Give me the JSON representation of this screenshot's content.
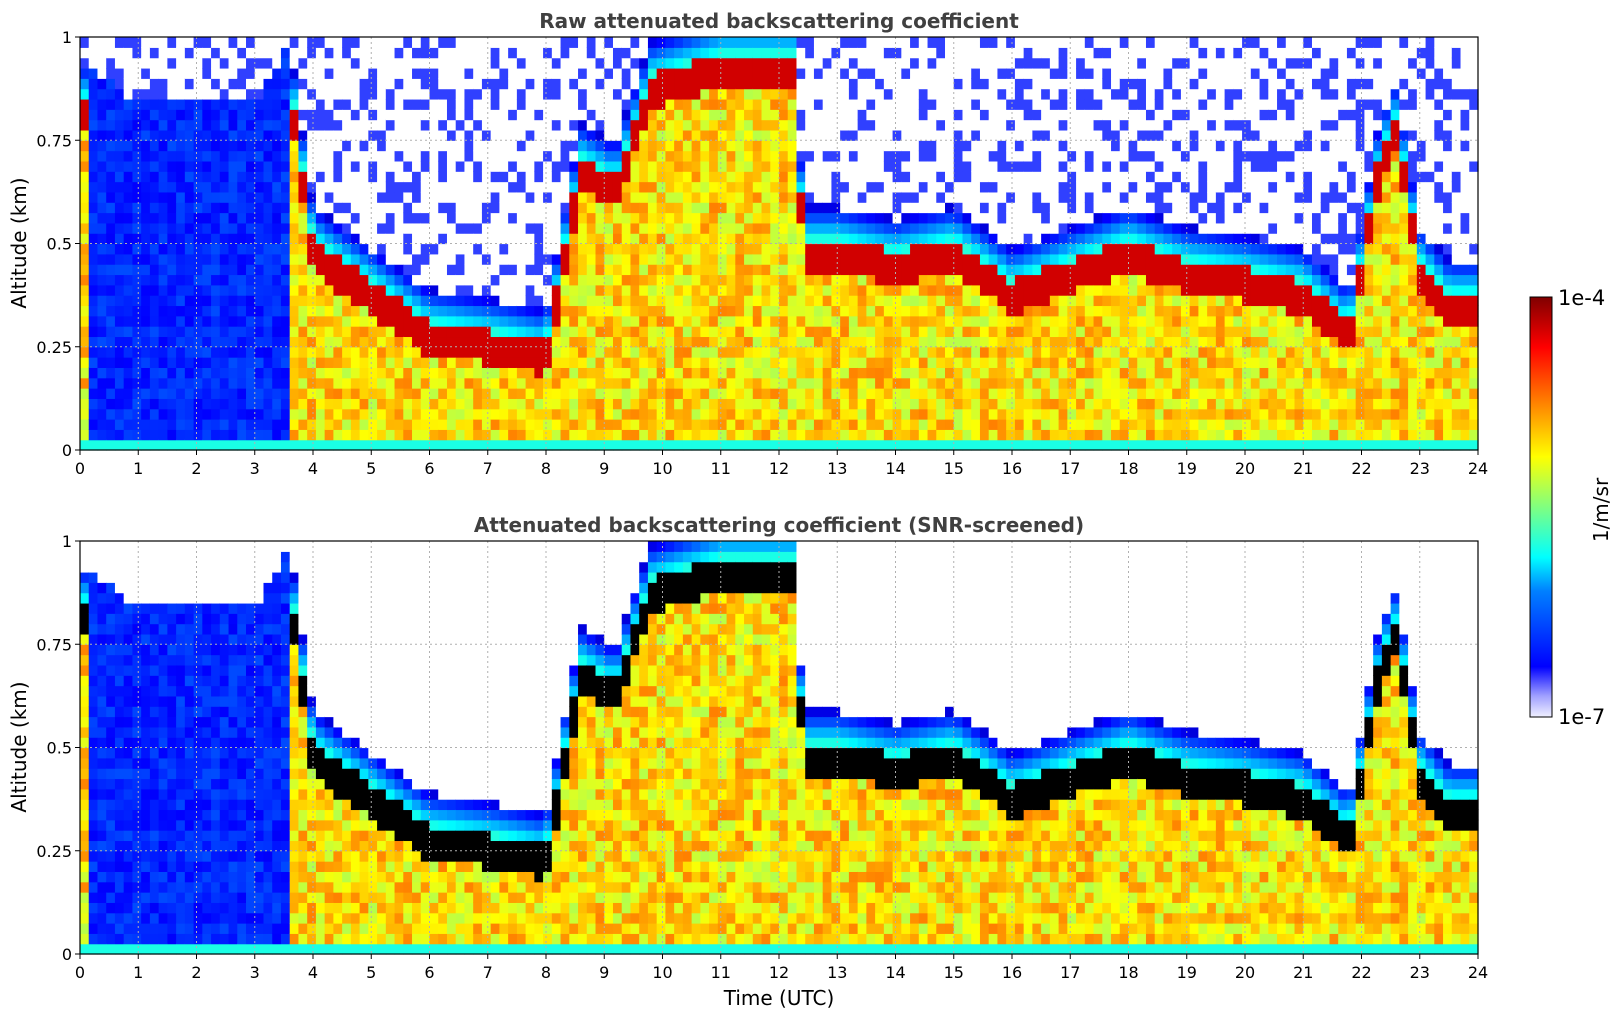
{
  "chart_data": [
    {
      "type": "heatmap",
      "title": "Raw attenuated backscattering coefficient",
      "xlabel": "",
      "ylabel": "Altitude (km)",
      "xlim": [
        0,
        24
      ],
      "ylim": [
        0,
        1
      ],
      "xticks": [
        "0",
        "1",
        "2",
        "3",
        "4",
        "5",
        "6",
        "7",
        "8",
        "9",
        "10",
        "11",
        "12",
        "13",
        "14",
        "15",
        "16",
        "17",
        "18",
        "19",
        "20",
        "21",
        "22",
        "23",
        "24"
      ],
      "yticks": [
        "0",
        "0.25",
        "0.5",
        "0.75",
        "1"
      ],
      "ytick_values": [
        0,
        0.25,
        0.5,
        0.75,
        1
      ],
      "grid": true,
      "screened": false,
      "layer_top_km": [
        [
          0,
          0.9
        ],
        [
          0.5,
          0.85
        ],
        [
          1,
          0.8
        ],
        [
          2,
          0.8
        ],
        [
          3,
          0.8
        ],
        [
          3.6,
          0.95
        ],
        [
          4,
          0.55
        ],
        [
          5,
          0.45
        ],
        [
          6,
          0.35
        ],
        [
          7,
          0.33
        ],
        [
          8,
          0.3
        ],
        [
          8.6,
          0.75
        ],
        [
          9.2,
          0.7
        ],
        [
          9.8,
          0.95
        ],
        [
          11,
          1.0
        ],
        [
          12.3,
          1.0
        ],
        [
          12.4,
          0.55
        ],
        [
          13,
          0.55
        ],
        [
          14,
          0.52
        ],
        [
          15,
          0.55
        ],
        [
          16,
          0.45
        ],
        [
          17,
          0.5
        ],
        [
          18,
          0.55
        ],
        [
          19,
          0.5
        ],
        [
          20,
          0.48
        ],
        [
          21,
          0.45
        ],
        [
          21.8,
          0.35
        ],
        [
          22.3,
          0.75
        ],
        [
          22.6,
          0.85
        ],
        [
          23,
          0.5
        ],
        [
          23.5,
          0.42
        ],
        [
          24,
          0.42
        ]
      ]
    },
    {
      "type": "heatmap",
      "title": "Attenuated backscattering coefficient (SNR-screened)",
      "xlabel": "Time (UTC)",
      "ylabel": "Altitude (km)",
      "xlim": [
        0,
        24
      ],
      "ylim": [
        0,
        1
      ],
      "xticks": [
        "0",
        "1",
        "2",
        "3",
        "4",
        "5",
        "6",
        "7",
        "8",
        "9",
        "10",
        "11",
        "12",
        "13",
        "14",
        "15",
        "16",
        "17",
        "18",
        "19",
        "20",
        "21",
        "22",
        "23",
        "24"
      ],
      "yticks": [
        "0",
        "0.25",
        "0.5",
        "0.75",
        "1"
      ],
      "ytick_values": [
        0,
        0.25,
        0.5,
        0.75,
        1
      ],
      "grid": true,
      "screened": true,
      "layer_top_km": [
        [
          0,
          0.9
        ],
        [
          0.5,
          0.85
        ],
        [
          1,
          0.8
        ],
        [
          2,
          0.8
        ],
        [
          3,
          0.8
        ],
        [
          3.6,
          0.95
        ],
        [
          4,
          0.55
        ],
        [
          5,
          0.45
        ],
        [
          6,
          0.35
        ],
        [
          7,
          0.33
        ],
        [
          8,
          0.3
        ],
        [
          8.6,
          0.75
        ],
        [
          9.2,
          0.7
        ],
        [
          9.8,
          0.95
        ],
        [
          11,
          1.0
        ],
        [
          12.3,
          1.0
        ],
        [
          12.4,
          0.55
        ],
        [
          13,
          0.55
        ],
        [
          14,
          0.52
        ],
        [
          15,
          0.55
        ],
        [
          16,
          0.45
        ],
        [
          17,
          0.5
        ],
        [
          18,
          0.55
        ],
        [
          19,
          0.5
        ],
        [
          20,
          0.48
        ],
        [
          21,
          0.45
        ],
        [
          21.8,
          0.35
        ],
        [
          22.3,
          0.75
        ],
        [
          22.6,
          0.85
        ],
        [
          23,
          0.5
        ],
        [
          23.5,
          0.42
        ],
        [
          24,
          0.42
        ]
      ]
    }
  ],
  "colorbar": {
    "max_label": "1e-4",
    "min_label": "1e-7",
    "unit_label": "1/m/sr",
    "colormap": "jet",
    "min_color": "#f0f0ff",
    "max_color": "#800000"
  }
}
